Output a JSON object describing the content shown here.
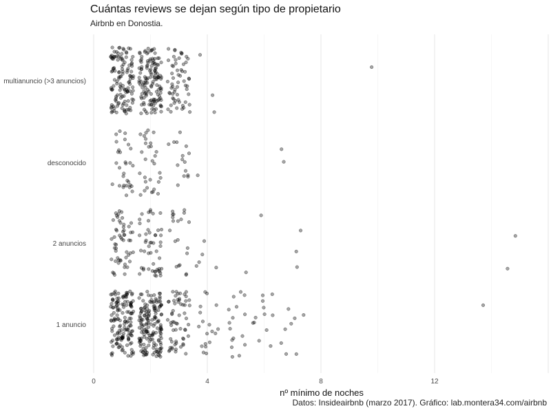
{
  "chart_data": {
    "type": "scatter",
    "title": "Cuántas reviews se dejan según tipo de propietario",
    "subtitle": "Airbnb en Donostia.",
    "caption": "Datos: Insideairbnb (marzo 2017). Gráfico: lab.montera34.com/airbnb",
    "xlabel": "nº mínimo de noches",
    "ylabel": "",
    "xlim": [
      0,
      16
    ],
    "x_ticks": [
      0,
      4,
      8,
      12
    ],
    "grid": "vertical",
    "jitter": "vertical",
    "point_color": "#000000",
    "point_opacity": 0.35,
    "categories": [
      "1 anuncio",
      "2 anuncios",
      "desconocido",
      "multianuncio (>3 anuncios)"
    ],
    "series": [
      {
        "category": "1 anuncio",
        "values": [
          {
            "x": 1,
            "count": 150
          },
          {
            "x": 2,
            "count": 170
          },
          {
            "x": 3,
            "count": 60
          },
          {
            "x": 4,
            "count": 18
          },
          {
            "x": 5,
            "count": 16
          },
          {
            "x": 6,
            "count": 12
          },
          {
            "x": 7,
            "count": 8
          },
          {
            "x": 14,
            "count": 1
          }
        ]
      },
      {
        "category": "2 anuncios",
        "values": [
          {
            "x": 1,
            "count": 55
          },
          {
            "x": 2,
            "count": 50
          },
          {
            "x": 3,
            "count": 20
          },
          {
            "x": 4,
            "count": 5
          },
          {
            "x": 5,
            "count": 1
          },
          {
            "x": 6,
            "count": 1
          },
          {
            "x": 7,
            "count": 3
          },
          {
            "x": 15,
            "count": 2
          }
        ]
      },
      {
        "category": "desconocido",
        "values": [
          {
            "x": 1,
            "count": 30
          },
          {
            "x": 2,
            "count": 30
          },
          {
            "x": 3,
            "count": 15
          },
          {
            "x": 4,
            "count": 1
          },
          {
            "x": 7,
            "count": 2
          }
        ]
      },
      {
        "category": "multianuncio (>3 anuncios)",
        "values": [
          {
            "x": 1,
            "count": 130
          },
          {
            "x": 2,
            "count": 140
          },
          {
            "x": 3,
            "count": 60
          },
          {
            "x": 4,
            "count": 3
          },
          {
            "x": 10,
            "count": 1
          }
        ]
      }
    ]
  }
}
